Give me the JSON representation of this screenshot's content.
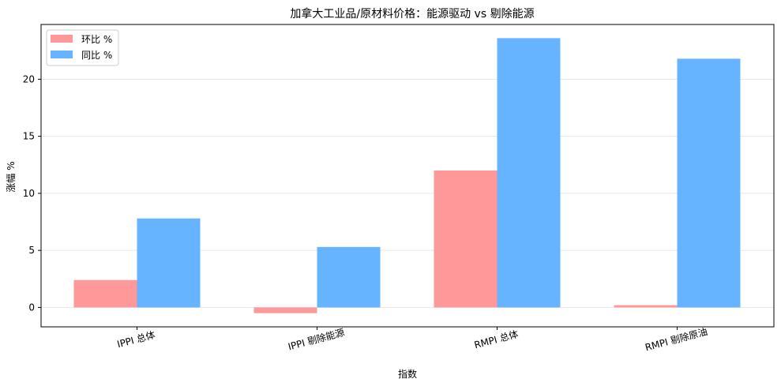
{
  "chart_data": {
    "type": "bar",
    "title": "加拿大工业品/原材料价格：能源驱动 vs 剔除能源",
    "xlabel": "指数",
    "ylabel": "涨幅 %",
    "categories": [
      "IPPI 总体",
      "IPPI 剔除能源",
      "RMPI 总体",
      "RMPI 剔除原油"
    ],
    "series": [
      {
        "name": "环比 %",
        "values": [
          2.4,
          -0.5,
          12.0,
          0.2
        ],
        "color": "#ff9999"
      },
      {
        "name": "同比 %",
        "values": [
          7.8,
          5.3,
          23.6,
          21.8
        ],
        "color": "#66b3ff"
      }
    ],
    "ylim": [
      -1.7,
      24.8
    ],
    "yticks": [
      0,
      5,
      10,
      15,
      20
    ],
    "grid": "y",
    "legend_position": "top-left"
  }
}
